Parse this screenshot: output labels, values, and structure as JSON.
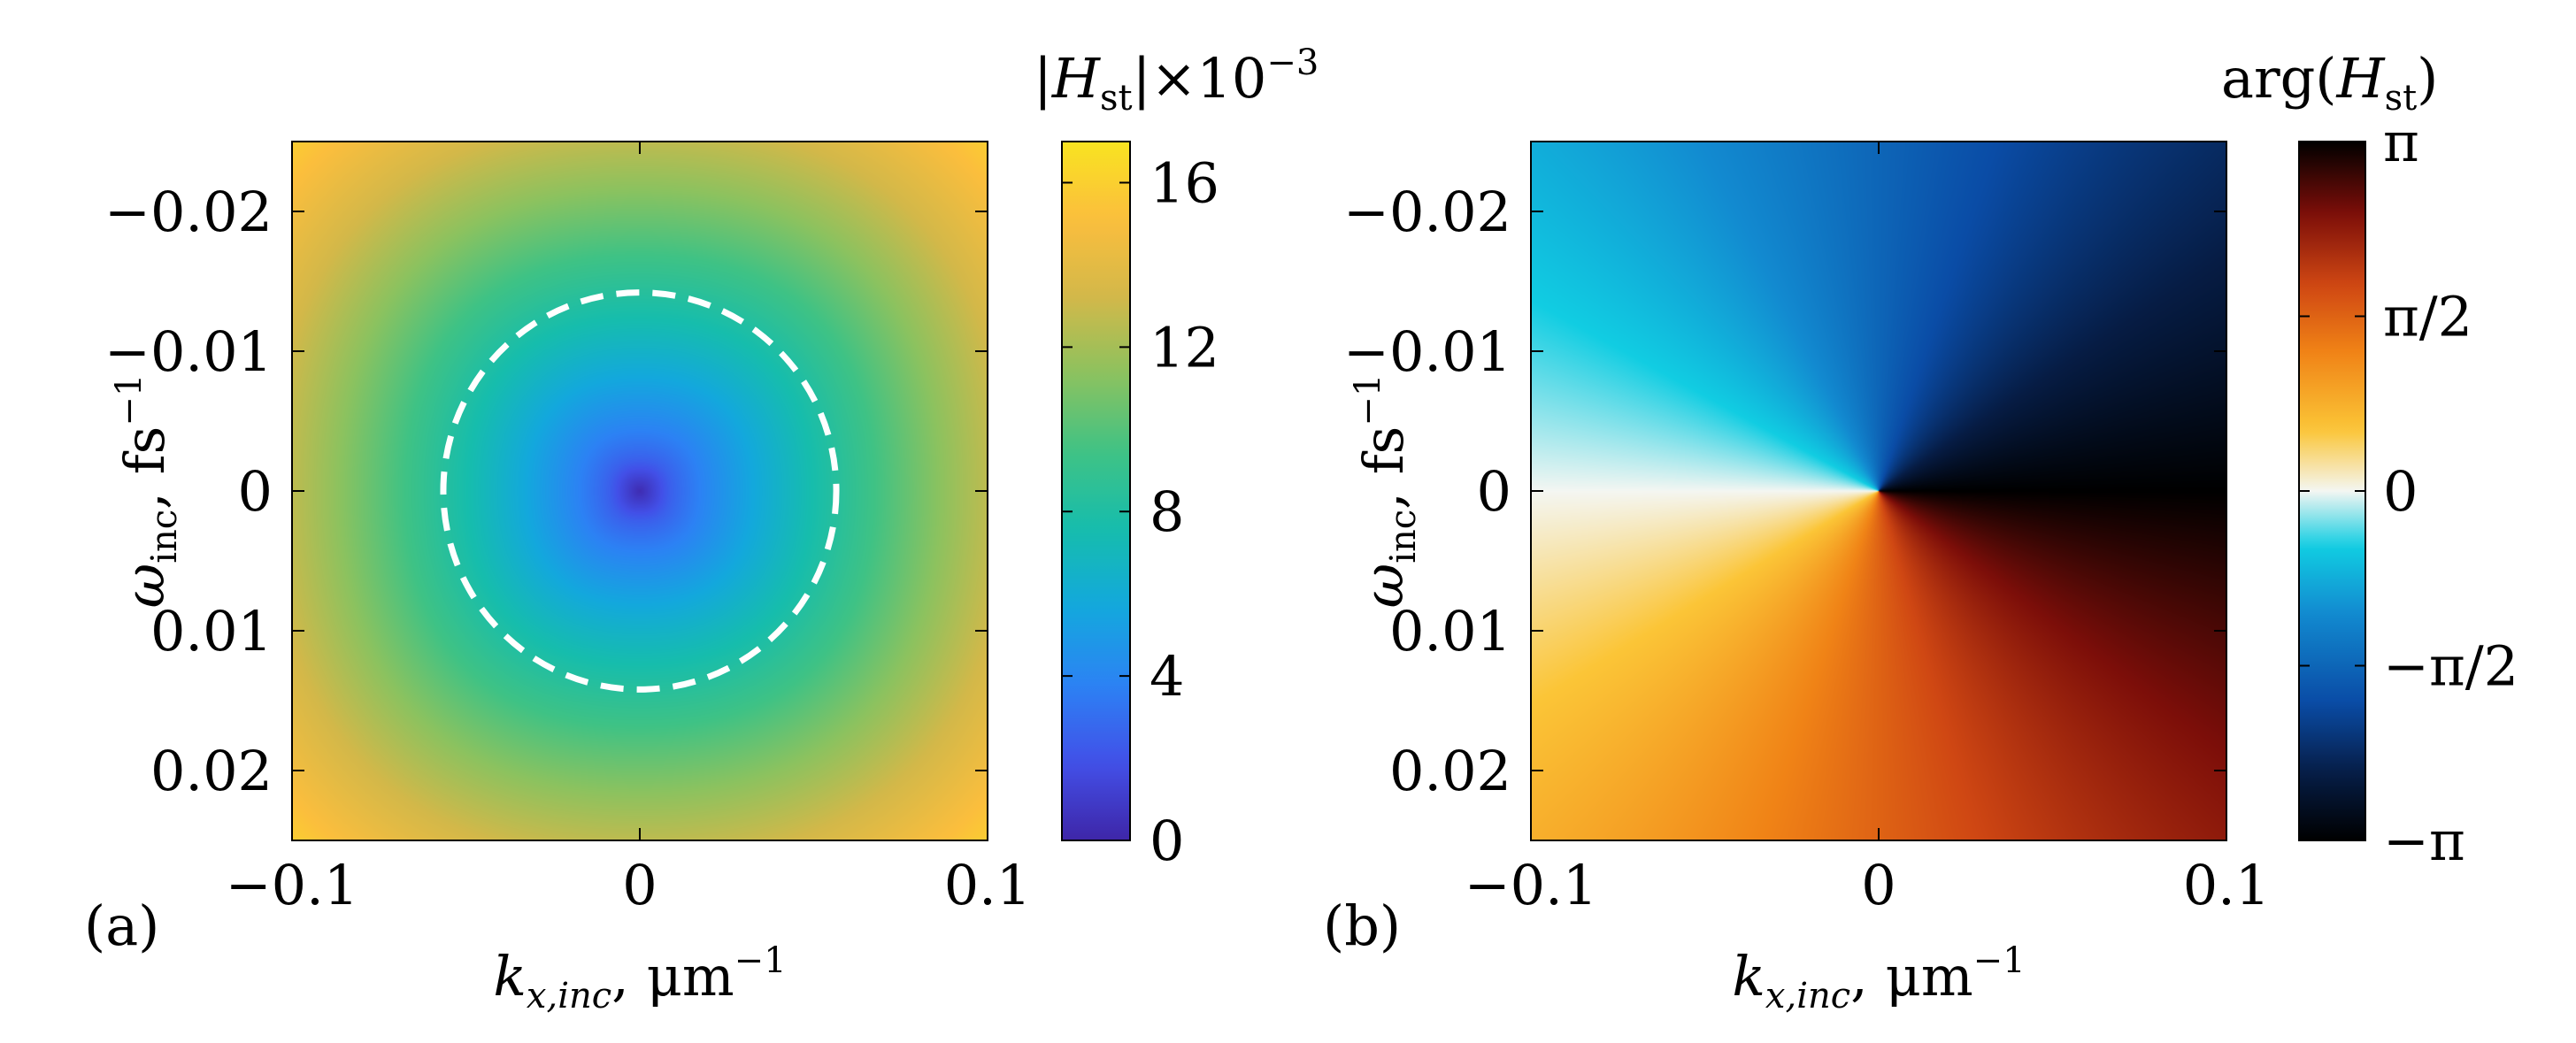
{
  "chart_data": [
    {
      "type": "heatmap",
      "panel_label": "(a)",
      "quantity": "magnitude |H_st|",
      "xlabel": {
        "main": "k",
        "sub": "x,inc",
        "unit": ", μm",
        "sup": "−1"
      },
      "ylabel": {
        "main": "ω",
        "sub": "inc",
        "unit": ", fs",
        "sup": "−1"
      },
      "xlim": [
        -0.1,
        0.1
      ],
      "ylim": [
        -0.025,
        0.025
      ],
      "y_direction": "reversed",
      "x_ticks": [
        {
          "value": -0.1,
          "label": "−0.1"
        },
        {
          "value": 0,
          "label": "0"
        },
        {
          "value": 0.1,
          "label": "0.1"
        }
      ],
      "y_ticks": [
        {
          "value": -0.02,
          "label": "−0.02"
        },
        {
          "value": -0.01,
          "label": "−0.01"
        },
        {
          "value": 0,
          "label": "0"
        },
        {
          "value": 0.01,
          "label": "0.01"
        },
        {
          "value": 0.02,
          "label": "0.02"
        }
      ],
      "colorbar": {
        "title": {
          "pre": "|",
          "main": "H",
          "sub": "st",
          "post": "|×10",
          "sup": "−3"
        },
        "range": [
          0,
          17
        ],
        "ticks": [
          {
            "value": 0,
            "label": "0"
          },
          {
            "value": 4,
            "label": "4"
          },
          {
            "value": 8,
            "label": "8"
          },
          {
            "value": 12,
            "label": "12"
          },
          {
            "value": 16,
            "label": "16"
          }
        ],
        "colors": [
          "#3e26a8",
          "#4250e8",
          "#2c82f4",
          "#13a8dd",
          "#16bdad",
          "#3fc285",
          "#8cc25f",
          "#d3b849",
          "#fbbe3d",
          "#f9e420"
        ],
        "band_edge": 10
      },
      "field": {
        "min_value": 0.3,
        "center_value": 7.0,
        "corner_value": 16.5,
        "center_radius": 0.0425
      },
      "annotation": {
        "shape": "dashed circle",
        "center": [
          0,
          0
        ],
        "radius_x": 0.0565,
        "radius_y": 0.0142,
        "color": "#ffffff"
      }
    },
    {
      "type": "heatmap",
      "panel_label": "(b)",
      "quantity": "phase arg(H_st)",
      "xlabel": {
        "main": "k",
        "sub": "x,inc",
        "unit": ", μm",
        "sup": "−1"
      },
      "ylabel": {
        "main": "ω",
        "sub": "inc",
        "unit": ", fs",
        "sup": "−1"
      },
      "xlim": [
        -0.1,
        0.1
      ],
      "ylim": [
        -0.025,
        0.025
      ],
      "y_direction": "reversed",
      "x_ticks": [
        {
          "value": -0.1,
          "label": "−0.1"
        },
        {
          "value": 0,
          "label": "0"
        },
        {
          "value": 0.1,
          "label": "0.1"
        }
      ],
      "y_ticks": [
        {
          "value": -0.02,
          "label": "−0.02"
        },
        {
          "value": -0.01,
          "label": "−0.01"
        },
        {
          "value": 0,
          "label": "0"
        },
        {
          "value": 0.01,
          "label": "0.01"
        },
        {
          "value": 0.02,
          "label": "0.02"
        }
      ],
      "colorbar": {
        "title": {
          "pre": "arg(",
          "main": "H",
          "sub": "st",
          "post": ")",
          "sup": ""
        },
        "range": [
          -3.14159,
          3.14159
        ],
        "ticks": [
          {
            "value": -3.14159,
            "label": "−π"
          },
          {
            "value": -1.5708,
            "label": "−π/2"
          },
          {
            "value": 0,
            "label": "0"
          },
          {
            "value": 1.5708,
            "label": "π/2"
          },
          {
            "value": 3.14159,
            "label": "π"
          }
        ],
        "stops": [
          {
            "v": -3.14159,
            "c": "#000000"
          },
          {
            "v": -2.55,
            "c": "#061c44"
          },
          {
            "v": -1.9,
            "c": "#0a4ca6"
          },
          {
            "v": -1.1,
            "c": "#128ad0"
          },
          {
            "v": -0.5,
            "c": "#11cde2"
          },
          {
            "v": 0,
            "c": "#f4f6f2"
          },
          {
            "v": 0.55,
            "c": "#fbc537"
          },
          {
            "v": 1.25,
            "c": "#f08316"
          },
          {
            "v": 1.85,
            "c": "#cf4713"
          },
          {
            "v": 2.5,
            "c": "#7c0e09"
          },
          {
            "v": 3.14159,
            "c": "#000000"
          }
        ]
      },
      "field": {
        "phase_model": "arg(-k_x + i·ω·4)"
      }
    }
  ]
}
